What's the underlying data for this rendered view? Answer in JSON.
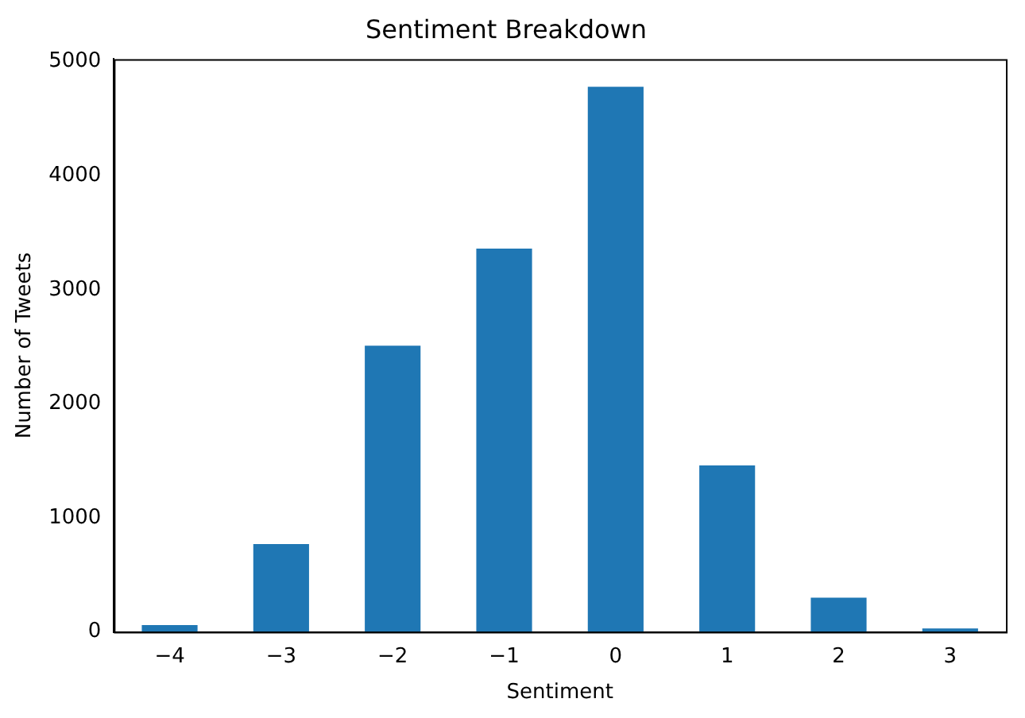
{
  "chart_data": {
    "type": "bar",
    "title": "Sentiment Breakdown",
    "xlabel": "Sentiment",
    "ylabel": "Number of Tweets",
    "categories": [
      "−4",
      "−3",
      "−2",
      "−1",
      "0",
      "1",
      "2",
      "3"
    ],
    "values": [
      60,
      770,
      2510,
      3360,
      4780,
      1460,
      300,
      30
    ],
    "color": "#1f77b4",
    "ylim": [
      0,
      5022
    ],
    "yticks": [
      0,
      1000,
      2000,
      3000,
      4000,
      5000
    ],
    "grid": false,
    "legend": false
  }
}
